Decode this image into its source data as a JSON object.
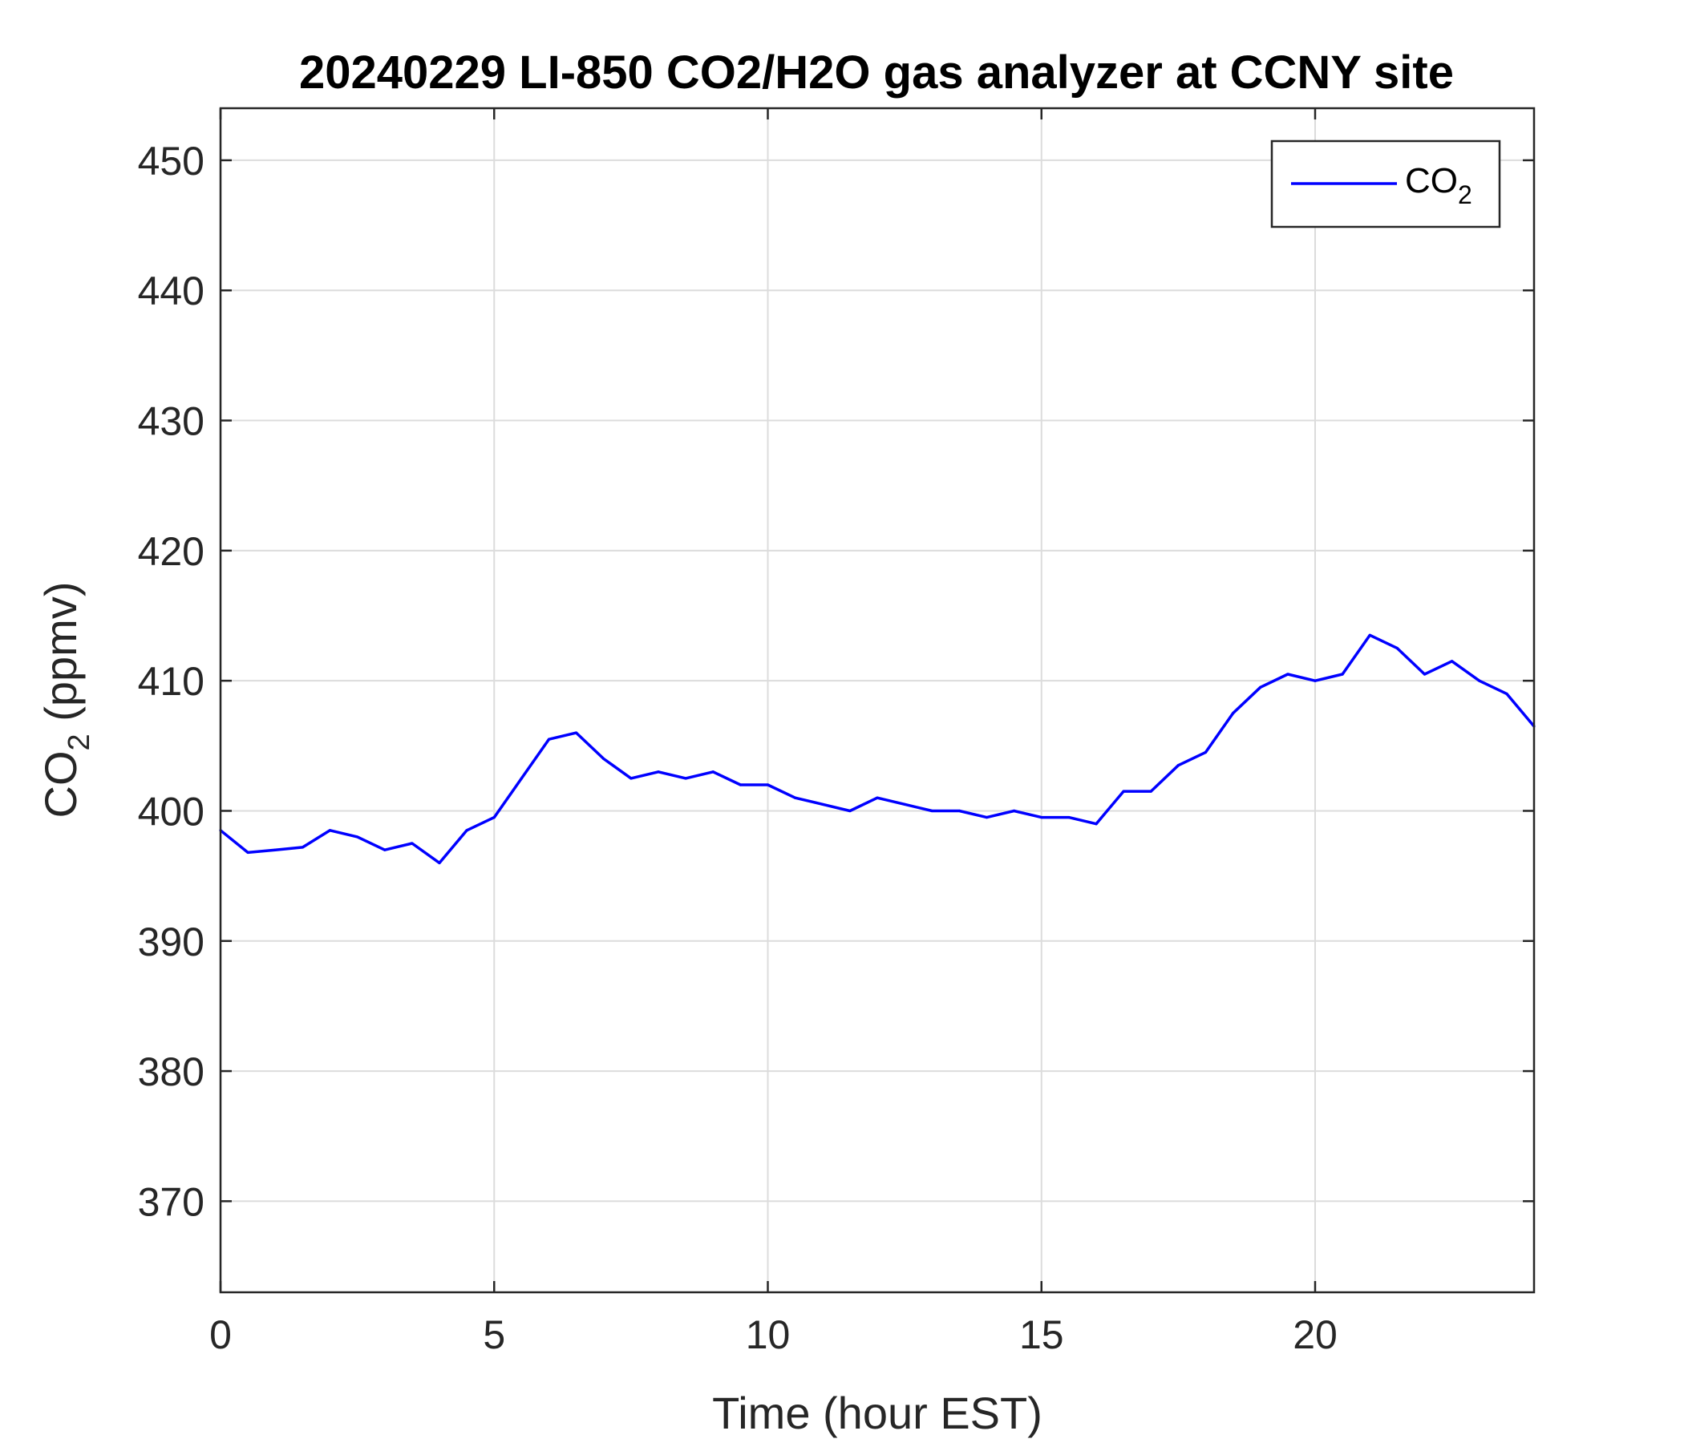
{
  "chart_data": {
    "type": "line",
    "title": "20240229 LI-850 CO2/H2O gas analyzer at CCNY site",
    "xlabel": "Time (hour EST)",
    "ylabel": {
      "main": "CO",
      "sub": "2",
      "tail": " (ppmv)"
    },
    "xlim": [
      0,
      24
    ],
    "ylim": [
      363,
      454
    ],
    "xticks": [
      0,
      5,
      10,
      15,
      20
    ],
    "yticks": [
      370,
      380,
      390,
      400,
      410,
      420,
      430,
      440,
      450
    ],
    "grid": true,
    "legend_position": "top-right",
    "series": [
      {
        "name": {
          "main": "CO",
          "sub": "2"
        },
        "color": "#0000FF",
        "x": [
          0,
          0.5,
          1,
          1.5,
          2,
          2.5,
          3,
          3.5,
          4,
          4.5,
          5,
          5.5,
          6,
          6.5,
          7,
          7.5,
          8,
          8.5,
          9,
          9.5,
          10,
          10.5,
          11,
          11.5,
          12,
          12.5,
          13,
          13.5,
          14,
          14.5,
          15,
          15.5,
          16,
          16.5,
          17,
          17.5,
          18,
          18.5,
          19,
          19.5,
          20,
          20.5,
          21,
          21.5,
          22,
          22.5,
          23,
          23.5,
          24
        ],
        "y": [
          398.5,
          396.8,
          397.0,
          397.2,
          398.5,
          398.0,
          397.0,
          397.5,
          396.0,
          398.5,
          399.5,
          402.5,
          405.5,
          406.0,
          404.0,
          402.5,
          403.0,
          402.5,
          403.0,
          402.0,
          402.0,
          401.0,
          400.5,
          400.0,
          401.0,
          400.5,
          400.0,
          400.0,
          399.5,
          400.0,
          399.5,
          399.5,
          399.0,
          401.5,
          401.5,
          403.5,
          404.5,
          407.5,
          409.5,
          410.5,
          410.0,
          410.5,
          413.5,
          412.5,
          410.5,
          411.5,
          410.0,
          409.0,
          406.5
        ]
      }
    ]
  }
}
